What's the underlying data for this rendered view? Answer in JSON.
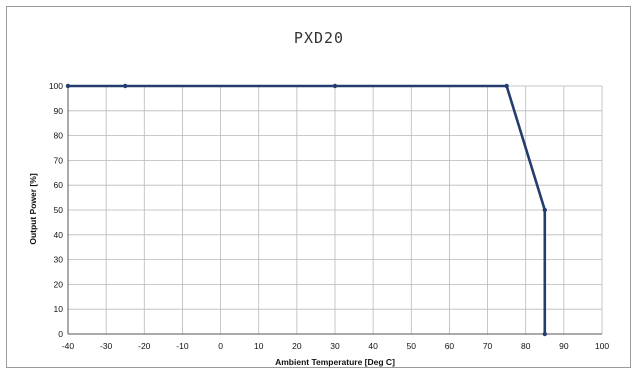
{
  "chart_data": {
    "type": "line",
    "title": "PXD20",
    "xlabel": "Ambient Temperature [Deg C]",
    "ylabel": "Output Power [%]",
    "xlim": [
      -40,
      100
    ],
    "ylim": [
      0,
      100
    ],
    "x_ticks": [
      -40,
      -30,
      -20,
      -10,
      0,
      10,
      20,
      30,
      40,
      50,
      60,
      70,
      80,
      90,
      100
    ],
    "y_ticks": [
      0,
      10,
      20,
      30,
      40,
      50,
      60,
      70,
      80,
      90,
      100
    ],
    "grid": true,
    "series": [
      {
        "color": "#243d6e",
        "points": [
          {
            "x": -40,
            "y": 100
          },
          {
            "x": -25,
            "y": 100
          },
          {
            "x": 30,
            "y": 100
          },
          {
            "x": 75,
            "y": 100
          },
          {
            "x": 85,
            "y": 50
          },
          {
            "x": 85,
            "y": 0
          }
        ]
      }
    ]
  }
}
